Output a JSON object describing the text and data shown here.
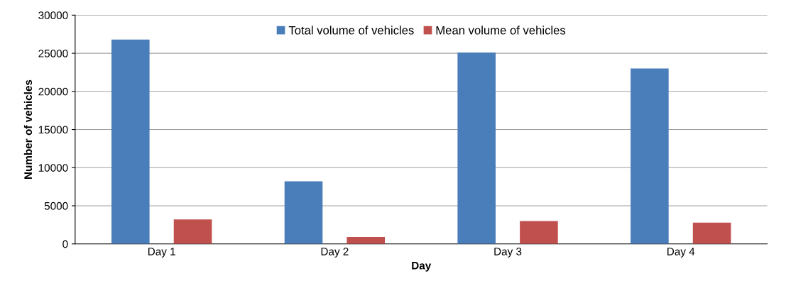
{
  "chart_data": {
    "type": "bar",
    "xlabel": "Day",
    "ylabel": "Number of vehicles",
    "categories": [
      "Day 1",
      "Day 2",
      "Day 3",
      "Day 4"
    ],
    "series": [
      {
        "name": "Total volume of vehicles",
        "color": "#4a7ebb",
        "values": [
          26800,
          8200,
          25100,
          23000
        ]
      },
      {
        "name": "Mean volume of vehicles",
        "color": "#c0504d",
        "values": [
          3200,
          900,
          3000,
          2800
        ]
      }
    ],
    "ylim": [
      0,
      30000
    ],
    "yticks": [
      0,
      5000,
      10000,
      15000,
      20000,
      25000,
      30000
    ],
    "grid": "y",
    "legend": "top"
  }
}
